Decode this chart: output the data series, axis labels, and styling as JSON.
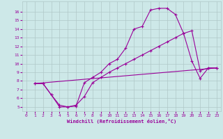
{
  "bg_color": "#cde8e8",
  "grid_color": "#b0c8c8",
  "line_color": "#990099",
  "xlabel": "Windchill (Refroidissement éolien,°C)",
  "xlim": [
    -0.5,
    23.5
  ],
  "ylim": [
    4.5,
    17.2
  ],
  "yticks": [
    5,
    6,
    7,
    8,
    9,
    10,
    11,
    12,
    13,
    14,
    15,
    16
  ],
  "xticks": [
    0,
    1,
    2,
    3,
    4,
    5,
    6,
    7,
    8,
    9,
    10,
    11,
    12,
    13,
    14,
    15,
    16,
    17,
    18,
    19,
    20,
    21,
    22,
    23
  ],
  "line1_x": [
    1,
    2,
    3,
    4,
    5,
    6,
    7,
    8,
    9,
    10,
    11,
    12,
    13,
    14,
    15,
    16,
    17,
    18,
    19,
    20,
    21,
    22,
    23
  ],
  "line1_y": [
    7.7,
    7.7,
    6.4,
    5.2,
    5.0,
    5.1,
    7.8,
    8.4,
    9.0,
    10.0,
    10.5,
    11.8,
    14.0,
    14.3,
    16.2,
    16.4,
    16.4,
    15.7,
    13.5,
    10.3,
    8.3,
    9.5,
    9.5
  ],
  "line2_x": [
    1,
    2,
    3,
    4,
    5,
    6,
    7,
    8,
    9,
    10,
    11,
    12,
    13,
    14,
    15,
    16,
    17,
    18,
    19,
    20,
    21,
    22,
    23
  ],
  "line2_y": [
    7.7,
    7.7,
    6.4,
    5.0,
    5.0,
    5.2,
    6.2,
    7.8,
    8.4,
    9.0,
    9.5,
    10.0,
    10.5,
    11.0,
    11.5,
    12.0,
    12.5,
    13.0,
    13.5,
    13.8,
    9.2,
    9.5,
    9.5
  ],
  "line3_x": [
    1,
    23
  ],
  "line3_y": [
    7.7,
    9.5
  ],
  "tick_fontsize": 4.5,
  "xlabel_fontsize": 5.0
}
